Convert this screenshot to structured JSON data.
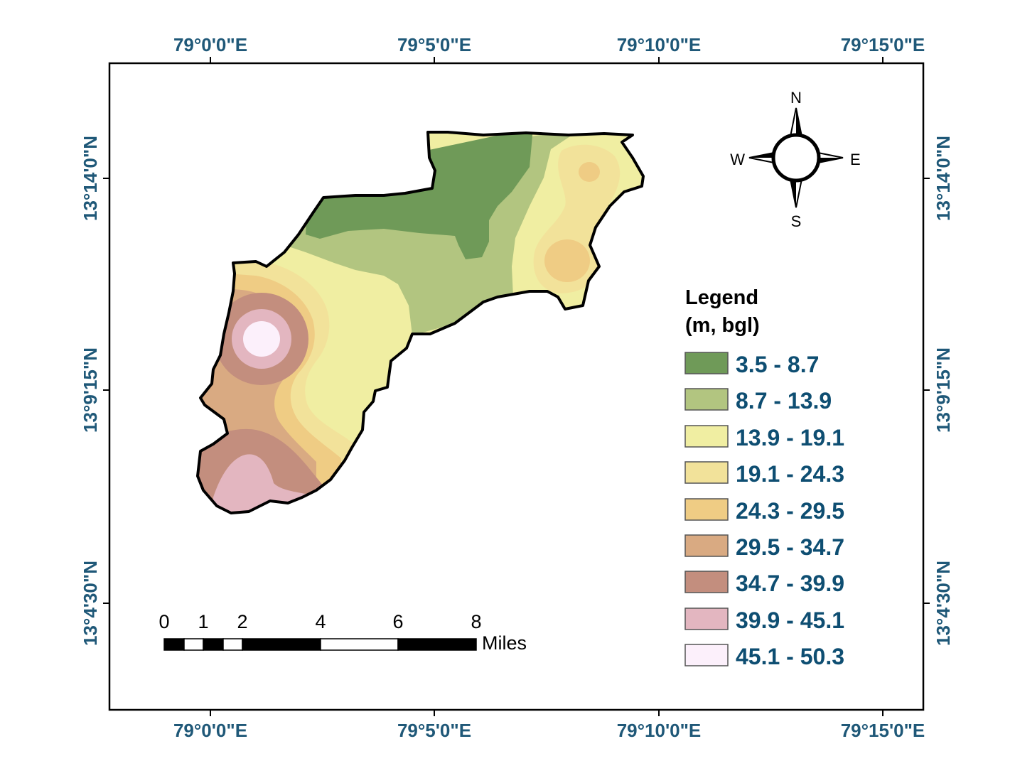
{
  "map": {
    "longitude_ticks": [
      "79°0'0\"E",
      "79°5'0\"E",
      "79°10'0\"E",
      "79°15'0\"E"
    ],
    "latitude_ticks": [
      "13°14'0\"N",
      "13°9'15\"N",
      "13°4'30\"N"
    ]
  },
  "legend": {
    "title_line1": "Legend",
    "title_line2": "(m, bgl)",
    "classes": [
      {
        "range": "3.5 - 8.7",
        "color": "#6f9a58"
      },
      {
        "range": "8.7 - 13.9",
        "color": "#b2c580"
      },
      {
        "range": "13.9 - 19.1",
        "color": "#f0eea2"
      },
      {
        "range": "19.1 - 24.3",
        "color": "#f2e29a"
      },
      {
        "range": "24.3 - 29.5",
        "color": "#efcc84"
      },
      {
        "range": "29.5 - 34.7",
        "color": "#d9aa82"
      },
      {
        "range": "34.7 - 39.9",
        "color": "#c38e7e"
      },
      {
        "range": "39.9 - 45.1",
        "color": "#e3b6c0"
      },
      {
        "range": "45.1 - 50.3",
        "color": "#fcf0fb"
      }
    ]
  },
  "north_arrow": {
    "n": "N",
    "s": "S",
    "e": "E",
    "w": "W"
  },
  "scale_bar": {
    "labels": [
      "0",
      "1",
      "2",
      "4",
      "6",
      "8"
    ],
    "unit": "Miles"
  }
}
